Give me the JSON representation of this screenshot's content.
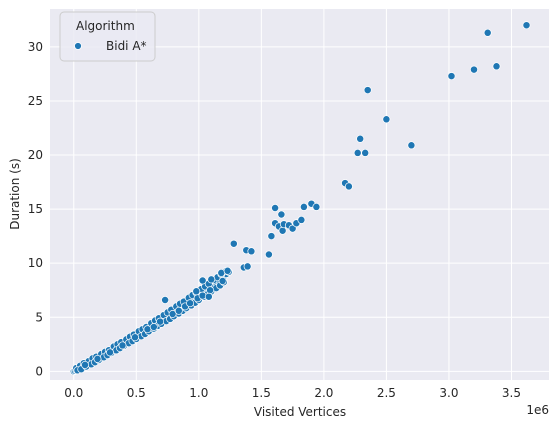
{
  "chart_data": {
    "type": "scatter",
    "xlabel": "Visited Vertices",
    "ylabel": "Duration (s)",
    "x_offset_label": "1e6",
    "xlim": [
      -0.19,
      3.8
    ],
    "ylim": [
      -0.8,
      33.5
    ],
    "x_ticks": [
      0.0,
      0.5,
      1.0,
      1.5,
      2.0,
      2.5,
      3.0,
      3.5
    ],
    "x_tick_labels": [
      "0.0",
      "0.5",
      "1.0",
      "1.5",
      "2.0",
      "2.5",
      "3.0",
      "3.5"
    ],
    "y_ticks": [
      0,
      5,
      10,
      15,
      20,
      25,
      30
    ],
    "y_tick_labels": [
      "0",
      "5",
      "10",
      "15",
      "20",
      "25",
      "30"
    ],
    "grid": true,
    "legend": {
      "title": "Algorithm",
      "placement": "top-left"
    },
    "colors": {
      "series": "#1f77b4",
      "background": "#eaeaf2",
      "grid": "#ffffff"
    },
    "series": [
      {
        "name": "Bidi A*",
        "points": [
          [
            0.0,
            0.0
          ],
          [
            0.01,
            0.06
          ],
          [
            0.02,
            0.12
          ],
          [
            0.03,
            0.2
          ],
          [
            0.04,
            0.25
          ],
          [
            0.05,
            0.32
          ],
          [
            0.06,
            0.38
          ],
          [
            0.07,
            0.45
          ],
          [
            0.08,
            0.5
          ],
          [
            0.09,
            0.58
          ],
          [
            0.1,
            0.62
          ],
          [
            0.11,
            0.7
          ],
          [
            0.12,
            0.75
          ],
          [
            0.13,
            0.83
          ],
          [
            0.14,
            0.88
          ],
          [
            0.15,
            0.95
          ],
          [
            0.16,
            1.0
          ],
          [
            0.17,
            1.08
          ],
          [
            0.18,
            1.12
          ],
          [
            0.19,
            1.2
          ],
          [
            0.2,
            1.25
          ],
          [
            0.21,
            1.33
          ],
          [
            0.22,
            1.4
          ],
          [
            0.23,
            1.45
          ],
          [
            0.24,
            1.52
          ],
          [
            0.25,
            1.58
          ],
          [
            0.26,
            1.65
          ],
          [
            0.27,
            1.7
          ],
          [
            0.28,
            1.78
          ],
          [
            0.29,
            1.85
          ],
          [
            0.3,
            1.9
          ],
          [
            0.31,
            1.98
          ],
          [
            0.32,
            2.05
          ],
          [
            0.33,
            2.1
          ],
          [
            0.34,
            2.18
          ],
          [
            0.35,
            2.25
          ],
          [
            0.36,
            2.3
          ],
          [
            0.37,
            2.38
          ],
          [
            0.38,
            2.45
          ],
          [
            0.39,
            2.52
          ],
          [
            0.4,
            2.58
          ],
          [
            0.41,
            2.65
          ],
          [
            0.42,
            2.72
          ],
          [
            0.43,
            2.8
          ],
          [
            0.44,
            2.85
          ],
          [
            0.45,
            2.92
          ],
          [
            0.46,
            3.0
          ],
          [
            0.47,
            3.05
          ],
          [
            0.48,
            3.12
          ],
          [
            0.5,
            3.25
          ],
          [
            0.52,
            3.4
          ],
          [
            0.54,
            3.55
          ],
          [
            0.56,
            3.7
          ],
          [
            0.58,
            3.85
          ],
          [
            0.6,
            4.0
          ],
          [
            0.62,
            4.15
          ],
          [
            0.64,
            4.3
          ],
          [
            0.66,
            4.45
          ],
          [
            0.68,
            4.6
          ],
          [
            0.7,
            4.75
          ],
          [
            0.72,
            4.9
          ],
          [
            0.74,
            5.05
          ],
          [
            0.76,
            5.2
          ],
          [
            0.78,
            5.35
          ],
          [
            0.8,
            5.5
          ],
          [
            0.82,
            5.65
          ],
          [
            0.84,
            5.8
          ],
          [
            0.86,
            5.95
          ],
          [
            0.88,
            6.1
          ],
          [
            0.9,
            6.25
          ],
          [
            0.92,
            6.4
          ],
          [
            0.94,
            6.55
          ],
          [
            0.96,
            6.7
          ],
          [
            0.98,
            6.9
          ],
          [
            1.0,
            7.05
          ],
          [
            1.02,
            7.2
          ],
          [
            1.04,
            7.35
          ],
          [
            1.06,
            7.5
          ],
          [
            1.08,
            7.65
          ],
          [
            1.1,
            7.85
          ],
          [
            1.12,
            8.0
          ],
          [
            1.14,
            8.2
          ],
          [
            1.16,
            8.4
          ],
          [
            1.18,
            8.6
          ],
          [
            1.2,
            8.8
          ],
          [
            1.22,
            9.0
          ],
          [
            1.24,
            9.2
          ],
          [
            0.02,
            0.3
          ],
          [
            0.05,
            0.5
          ],
          [
            0.08,
            0.75
          ],
          [
            0.12,
            0.95
          ],
          [
            0.15,
            1.2
          ],
          [
            0.18,
            1.35
          ],
          [
            0.22,
            1.6
          ],
          [
            0.25,
            1.8
          ],
          [
            0.28,
            1.95
          ],
          [
            0.32,
            2.3
          ],
          [
            0.35,
            2.5
          ],
          [
            0.38,
            2.7
          ],
          [
            0.42,
            2.95
          ],
          [
            0.45,
            3.2
          ],
          [
            0.48,
            3.4
          ],
          [
            0.52,
            3.7
          ],
          [
            0.55,
            3.9
          ],
          [
            0.58,
            4.1
          ],
          [
            0.62,
            4.45
          ],
          [
            0.65,
            4.7
          ],
          [
            0.68,
            4.9
          ],
          [
            0.72,
            5.2
          ],
          [
            0.75,
            5.45
          ],
          [
            0.78,
            5.7
          ],
          [
            0.82,
            6.0
          ],
          [
            0.85,
            6.25
          ],
          [
            0.88,
            6.45
          ],
          [
            0.92,
            6.8
          ],
          [
            0.95,
            7.05
          ],
          [
            0.98,
            7.3
          ],
          [
            1.02,
            7.6
          ],
          [
            1.05,
            7.85
          ],
          [
            1.08,
            8.1
          ],
          [
            1.12,
            8.45
          ],
          [
            1.15,
            8.7
          ],
          [
            1.18,
            9.0
          ],
          [
            1.22,
            9.3
          ],
          [
            0.03,
            0.1
          ],
          [
            0.06,
            0.2
          ],
          [
            0.1,
            0.45
          ],
          [
            0.14,
            0.65
          ],
          [
            0.17,
            0.85
          ],
          [
            0.2,
            1.05
          ],
          [
            0.24,
            1.3
          ],
          [
            0.27,
            1.5
          ],
          [
            0.3,
            1.7
          ],
          [
            0.34,
            1.95
          ],
          [
            0.37,
            2.15
          ],
          [
            0.4,
            2.35
          ],
          [
            0.44,
            2.6
          ],
          [
            0.47,
            2.8
          ],
          [
            0.5,
            3.0
          ],
          [
            0.54,
            3.25
          ],
          [
            0.57,
            3.45
          ],
          [
            0.6,
            3.7
          ],
          [
            0.64,
            3.95
          ],
          [
            0.67,
            4.2
          ],
          [
            0.7,
            4.4
          ],
          [
            0.74,
            4.65
          ],
          [
            0.77,
            4.85
          ],
          [
            0.8,
            5.1
          ],
          [
            0.84,
            5.35
          ],
          [
            0.87,
            5.6
          ],
          [
            0.9,
            5.85
          ],
          [
            0.94,
            6.1
          ],
          [
            0.97,
            6.35
          ],
          [
            1.0,
            6.6
          ],
          [
            1.04,
            6.9
          ],
          [
            1.07,
            7.15
          ],
          [
            1.1,
            7.4
          ],
          [
            1.14,
            7.7
          ],
          [
            1.17,
            7.95
          ],
          [
            1.2,
            8.25
          ],
          [
            0.09,
            0.6
          ],
          [
            0.19,
            1.15
          ],
          [
            0.29,
            1.75
          ],
          [
            0.39,
            2.4
          ],
          [
            0.49,
            3.15
          ],
          [
            0.59,
            3.9
          ],
          [
            0.69,
            4.6
          ],
          [
            0.79,
            5.3
          ],
          [
            0.89,
            6.0
          ],
          [
            0.99,
            6.75
          ],
          [
            1.09,
            7.5
          ],
          [
            1.19,
            8.35
          ],
          [
            0.64,
            4.1
          ],
          [
            0.84,
            5.6
          ],
          [
            0.93,
            6.3
          ],
          [
            1.03,
            7.0
          ],
          [
            0.73,
            6.6
          ],
          [
            0.98,
            7.4
          ],
          [
            1.03,
            8.4
          ],
          [
            1.1,
            8.5
          ],
          [
            1.08,
            6.9
          ],
          [
            1.18,
            9.1
          ],
          [
            1.23,
            9.3
          ],
          [
            1.36,
            9.6
          ],
          [
            1.39,
            9.7
          ],
          [
            1.28,
            11.8
          ],
          [
            1.38,
            11.2
          ],
          [
            1.42,
            11.1
          ],
          [
            1.56,
            10.8
          ],
          [
            1.58,
            12.5
          ],
          [
            1.61,
            13.7
          ],
          [
            1.61,
            15.1
          ],
          [
            1.64,
            13.4
          ],
          [
            1.66,
            14.5
          ],
          [
            1.67,
            13.0
          ],
          [
            1.68,
            13.6
          ],
          [
            1.72,
            13.5
          ],
          [
            1.75,
            13.2
          ],
          [
            1.78,
            13.7
          ],
          [
            1.82,
            14.0
          ],
          [
            1.84,
            15.2
          ],
          [
            1.9,
            15.5
          ],
          [
            1.94,
            15.2
          ],
          [
            2.17,
            17.4
          ],
          [
            2.2,
            17.1
          ],
          [
            2.27,
            20.2
          ],
          [
            2.29,
            21.5
          ],
          [
            2.33,
            20.2
          ],
          [
            2.35,
            26.0
          ],
          [
            2.5,
            23.3
          ],
          [
            2.7,
            20.9
          ],
          [
            3.02,
            27.3
          ],
          [
            3.2,
            27.9
          ],
          [
            3.31,
            31.3
          ],
          [
            3.38,
            28.2
          ],
          [
            3.62,
            32.0
          ]
        ]
      }
    ]
  }
}
